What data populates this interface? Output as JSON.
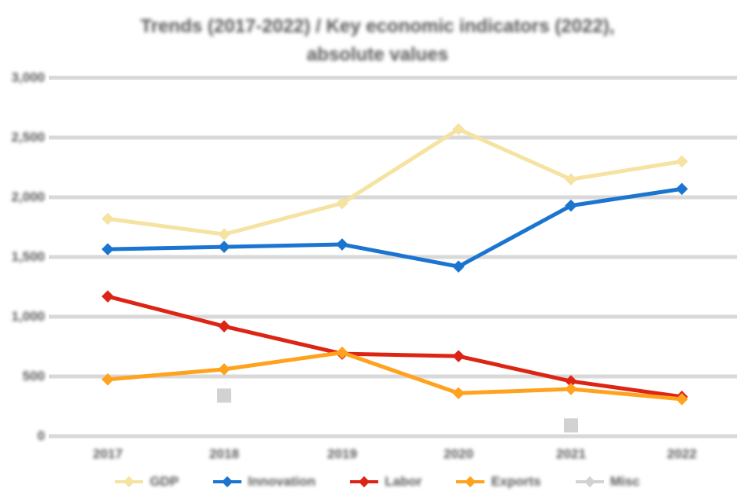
{
  "title": {
    "line1": "Trends (2017-2022) / Key economic indicators (2022),",
    "line2": "absolute values"
  },
  "chart_data": {
    "type": "line",
    "title": "Trends (2017-2022) / Key economic indicators (2022), absolute values",
    "categories": [
      "2017",
      "2018",
      "2019",
      "2020",
      "2021",
      "2022"
    ],
    "series": [
      {
        "name": "GDP",
        "color": "#F5E3A1",
        "marker": "diamond",
        "line": true,
        "values": [
          1820,
          1690,
          1950,
          2570,
          2150,
          2300
        ]
      },
      {
        "name": "Innovation",
        "color": "#1B75D0",
        "marker": "diamond",
        "line": true,
        "values": [
          1565,
          1585,
          1605,
          1420,
          1930,
          2070
        ]
      },
      {
        "name": "Labor",
        "color": "#DD2515",
        "marker": "diamond",
        "line": true,
        "values": [
          1170,
          920,
          690,
          670,
          460,
          330
        ]
      },
      {
        "name": "Exports",
        "color": "#FFA21E",
        "marker": "diamond",
        "line": true,
        "values": [
          475,
          560,
          700,
          360,
          395,
          310
        ]
      },
      {
        "name": "Misc",
        "color": "#D2D2D2",
        "marker": "square",
        "line": false,
        "values": [
          null,
          340,
          null,
          null,
          90,
          null
        ]
      }
    ],
    "xlabel": "",
    "ylabel": "",
    "ylim": [
      0,
      3000
    ],
    "ytick_step": 500,
    "ytick_labels": [
      "0",
      "500",
      "1,000",
      "1,500",
      "2,000",
      "2,500",
      "3,000"
    ],
    "grid": true,
    "gridline_color": "#D9D9D9",
    "legend_position": "bottom",
    "text_color": "#595959",
    "background_color": "#FFFFFF"
  }
}
